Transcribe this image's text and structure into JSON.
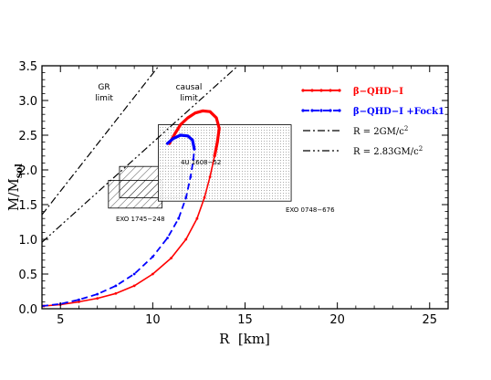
{
  "chart_data": {
    "type": "line",
    "xlabel": "R  [km]",
    "ylabel_main": "M/M",
    "ylabel_sub": "sol",
    "xlim": [
      4,
      26
    ],
    "ylim": [
      0,
      3.5
    ],
    "x_ticks": [
      5,
      10,
      15,
      20,
      25
    ],
    "y_ticks": [
      0.0,
      0.5,
      1.0,
      1.5,
      2.0,
      2.5,
      3.0,
      3.5
    ],
    "y_tick_labels": [
      "0.0",
      "0.5",
      "1.0",
      "1.5",
      "2.0",
      "2.5",
      "3.0",
      "3.5"
    ],
    "grid": false,
    "legend_position": "top-right",
    "series": [
      {
        "name": "β−QHD−I",
        "color": "#ff0000",
        "style": "solid-dots",
        "points": [
          [
            4.1,
            0.04
          ],
          [
            5.0,
            0.06
          ],
          [
            6.0,
            0.1
          ],
          [
            7.0,
            0.15
          ],
          [
            8.0,
            0.22
          ],
          [
            9.0,
            0.33
          ],
          [
            10.0,
            0.5
          ],
          [
            11.0,
            0.73
          ],
          [
            11.8,
            1.0
          ],
          [
            12.4,
            1.3
          ],
          [
            12.8,
            1.6
          ],
          [
            13.1,
            1.9
          ],
          [
            13.35,
            2.2
          ],
          [
            13.5,
            2.4
          ],
          [
            13.6,
            2.6
          ],
          [
            13.45,
            2.75
          ],
          [
            13.1,
            2.84
          ],
          [
            12.7,
            2.85
          ],
          [
            12.3,
            2.82
          ],
          [
            11.9,
            2.75
          ],
          [
            11.5,
            2.65
          ],
          [
            11.2,
            2.52
          ],
          [
            10.9,
            2.38
          ]
        ]
      },
      {
        "name": "β−QHD−I +Fock1",
        "color": "#0000ff",
        "style": "dashed-dots",
        "points": [
          [
            4.0,
            0.04
          ],
          [
            5.0,
            0.07
          ],
          [
            6.0,
            0.13
          ],
          [
            7.0,
            0.21
          ],
          [
            8.0,
            0.33
          ],
          [
            9.0,
            0.5
          ],
          [
            10.0,
            0.75
          ],
          [
            10.8,
            1.02
          ],
          [
            11.4,
            1.3
          ],
          [
            11.8,
            1.6
          ],
          [
            12.05,
            1.9
          ],
          [
            12.2,
            2.15
          ],
          [
            12.25,
            2.3
          ],
          [
            12.15,
            2.43
          ],
          [
            11.9,
            2.49
          ],
          [
            11.5,
            2.5
          ],
          [
            11.1,
            2.45
          ],
          [
            10.8,
            2.38
          ]
        ]
      }
    ],
    "limits": [
      {
        "name": "R = 2GM/c",
        "superscript": "2",
        "style": "dash-dot",
        "color": "#000000",
        "slope": 0.3387
      },
      {
        "name": "R = 2.83GM/c",
        "superscript": "2",
        "style": "dash-dot-dot",
        "color": "#000000",
        "slope": 0.2394
      }
    ],
    "regions": [
      {
        "label": "4U 1608−52",
        "x": [
          8.2,
          11.6
        ],
        "y": [
          1.6,
          2.05
        ],
        "pattern": "hatch"
      },
      {
        "label": "EXO 1745−248",
        "x": [
          7.6,
          10.5
        ],
        "y": [
          1.45,
          1.85
        ],
        "pattern": "hatch"
      },
      {
        "label": "EXO 0748−676",
        "x": [
          10.3,
          17.5
        ],
        "y": [
          1.55,
          2.65
        ],
        "pattern": "dots"
      }
    ],
    "annotations": [
      {
        "line1": "GR",
        "line2": "limit"
      },
      {
        "line1": "causal",
        "line2": "limit"
      }
    ]
  }
}
